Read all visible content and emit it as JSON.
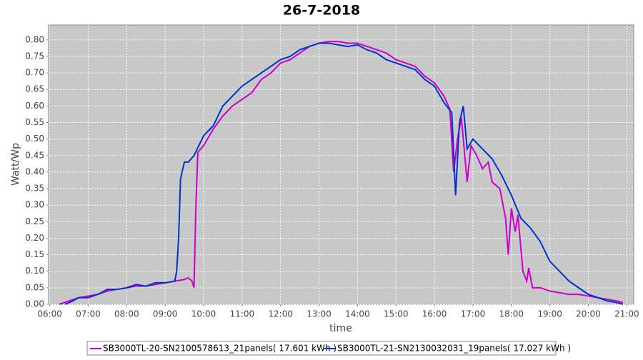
{
  "chart_data": {
    "type": "line",
    "title": "26-7-2018",
    "x_label": "time",
    "y_label": "Watt/Wp",
    "xlim": [
      5.97,
      21.18
    ],
    "ylim": [
      0,
      0.845
    ],
    "grid": true,
    "legend": "bottom",
    "xticks": [
      {
        "value": 6,
        "label": "06:00"
      },
      {
        "value": 7,
        "label": "07:00"
      },
      {
        "value": 8,
        "label": "08:00"
      },
      {
        "value": 9,
        "label": "09:00"
      },
      {
        "value": 10,
        "label": "10:00"
      },
      {
        "value": 11,
        "label": "11:00"
      },
      {
        "value": 12,
        "label": "12:00"
      },
      {
        "value": 13,
        "label": "13:00"
      },
      {
        "value": 14,
        "label": "14:00"
      },
      {
        "value": 15,
        "label": "15:00"
      },
      {
        "value": 16,
        "label": "16:00"
      },
      {
        "value": 17,
        "label": "17:00"
      },
      {
        "value": 18,
        "label": "18:00"
      },
      {
        "value": 19,
        "label": "19:00"
      },
      {
        "value": 20,
        "label": "20:00"
      },
      {
        "value": 21,
        "label": "21:00"
      }
    ],
    "yticks": [
      {
        "value": 0,
        "label": "0.00"
      },
      {
        "value": 0.05,
        "label": "0.05"
      },
      {
        "value": 0.1,
        "label": "0.10"
      },
      {
        "value": 0.15,
        "label": "0.15"
      },
      {
        "value": 0.2,
        "label": "0.20"
      },
      {
        "value": 0.25,
        "label": "0.25"
      },
      {
        "value": 0.3,
        "label": "0.30"
      },
      {
        "value": 0.35,
        "label": "0.35"
      },
      {
        "value": 0.4,
        "label": "0.40"
      },
      {
        "value": 0.45,
        "label": "0.45"
      },
      {
        "value": 0.5,
        "label": "0.50"
      },
      {
        "value": 0.55,
        "label": "0.55"
      },
      {
        "value": 0.6,
        "label": "0.60"
      },
      {
        "value": 0.65,
        "label": "0.65"
      },
      {
        "value": 0.7,
        "label": "0.70"
      },
      {
        "value": 0.75,
        "label": "0.75"
      },
      {
        "value": 0.8,
        "label": "0.80"
      }
    ],
    "series": [
      {
        "name": "SB3000TL-20-SN2100578613_21panels( 17.601 kWh )",
        "color": "#cc00cc",
        "x": [
          6.25,
          6.5,
          6.75,
          7.0,
          7.25,
          7.5,
          7.75,
          8.0,
          8.25,
          8.5,
          8.75,
          9.0,
          9.25,
          9.5,
          9.6,
          9.7,
          9.75,
          9.8,
          9.85,
          10.0,
          10.25,
          10.5,
          10.75,
          11.0,
          11.25,
          11.5,
          11.75,
          12.0,
          12.25,
          12.5,
          12.75,
          13.0,
          13.25,
          13.5,
          13.75,
          14.0,
          14.25,
          14.5,
          14.75,
          15.0,
          15.25,
          15.5,
          15.75,
          16.0,
          16.25,
          16.4,
          16.5,
          16.6,
          16.7,
          16.85,
          16.95,
          17.1,
          17.25,
          17.4,
          17.5,
          17.7,
          17.85,
          17.92,
          18.0,
          18.1,
          18.17,
          18.3,
          18.4,
          18.45,
          18.55,
          18.75,
          19.0,
          19.25,
          19.5,
          19.75,
          20.0,
          20.25,
          20.5,
          20.75,
          20.9
        ],
        "values": [
          0,
          0.01,
          0.02,
          0.025,
          0.03,
          0.04,
          0.045,
          0.05,
          0.055,
          0.055,
          0.06,
          0.065,
          0.07,
          0.075,
          0.08,
          0.07,
          0.05,
          0.3,
          0.46,
          0.48,
          0.53,
          0.57,
          0.6,
          0.62,
          0.64,
          0.68,
          0.7,
          0.73,
          0.74,
          0.76,
          0.78,
          0.79,
          0.795,
          0.795,
          0.79,
          0.79,
          0.78,
          0.77,
          0.76,
          0.74,
          0.73,
          0.72,
          0.69,
          0.67,
          0.63,
          0.59,
          0.4,
          0.5,
          0.565,
          0.37,
          0.48,
          0.45,
          0.41,
          0.43,
          0.37,
          0.35,
          0.26,
          0.15,
          0.29,
          0.22,
          0.27,
          0.1,
          0.07,
          0.11,
          0.05,
          0.05,
          0.04,
          0.035,
          0.03,
          0.03,
          0.025,
          0.02,
          0.015,
          0.01,
          0.005
        ]
      },
      {
        "name": "SB3000TL-21-SN2130032031_19panels( 17.027 kWh )",
        "color": "#0033cc",
        "x": [
          6.4,
          6.6,
          6.75,
          7.0,
          7.25,
          7.5,
          7.75,
          8.0,
          8.25,
          8.5,
          8.75,
          9.0,
          9.25,
          9.3,
          9.35,
          9.4,
          9.5,
          9.6,
          9.75,
          10.0,
          10.25,
          10.5,
          10.75,
          11.0,
          11.25,
          11.5,
          11.75,
          12.0,
          12.25,
          12.5,
          12.75,
          13.0,
          13.25,
          13.5,
          13.75,
          14.0,
          14.25,
          14.5,
          14.75,
          15.0,
          15.25,
          15.5,
          15.75,
          16.0,
          16.25,
          16.45,
          16.55,
          16.65,
          16.75,
          16.85,
          17.0,
          17.25,
          17.5,
          17.75,
          18.0,
          18.25,
          18.5,
          18.75,
          19.0,
          19.25,
          19.5,
          19.75,
          20.0,
          20.25,
          20.5,
          20.75,
          20.9
        ],
        "values": [
          0,
          0.01,
          0.02,
          0.02,
          0.03,
          0.045,
          0.045,
          0.05,
          0.06,
          0.055,
          0.065,
          0.065,
          0.07,
          0.1,
          0.2,
          0.38,
          0.43,
          0.43,
          0.45,
          0.51,
          0.54,
          0.6,
          0.63,
          0.66,
          0.68,
          0.7,
          0.72,
          0.74,
          0.75,
          0.77,
          0.78,
          0.79,
          0.79,
          0.785,
          0.78,
          0.785,
          0.77,
          0.76,
          0.74,
          0.73,
          0.72,
          0.71,
          0.68,
          0.66,
          0.61,
          0.58,
          0.33,
          0.55,
          0.6,
          0.47,
          0.5,
          0.47,
          0.44,
          0.39,
          0.33,
          0.26,
          0.23,
          0.19,
          0.13,
          0.1,
          0.07,
          0.05,
          0.03,
          0.02,
          0.01,
          0.005,
          0
        ]
      }
    ]
  }
}
